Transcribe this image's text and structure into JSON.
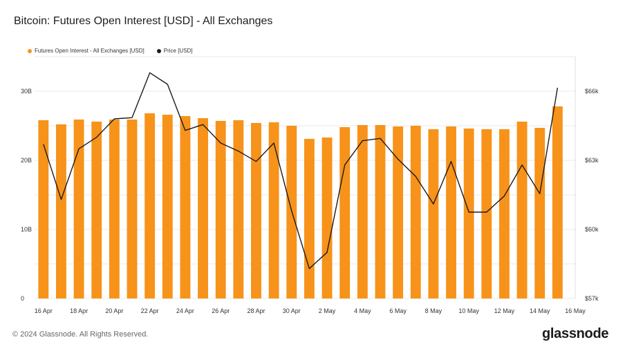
{
  "title": "Bitcoin: Futures Open Interest [USD] - All Exchanges",
  "legend": {
    "oi_label": "Futures Open Interest - All Exchanges [USD]",
    "price_label": "Price [USD]"
  },
  "footer": "© 2024 Glassnode. All Rights Reserved.",
  "brand": "glassnode",
  "colors": {
    "bars": "#F7931A",
    "line": "#1a1a1a",
    "grid": "#e8e8e8"
  },
  "chart_data": {
    "type": "bar",
    "x": [
      "16 Apr",
      "17 Apr",
      "18 Apr",
      "19 Apr",
      "20 Apr",
      "21 Apr",
      "22 Apr",
      "23 Apr",
      "24 Apr",
      "25 Apr",
      "26 Apr",
      "27 Apr",
      "28 Apr",
      "29 Apr",
      "30 Apr",
      "1 May",
      "2 May",
      "3 May",
      "4 May",
      "5 May",
      "6 May",
      "7 May",
      "8 May",
      "9 May",
      "10 May",
      "11 May",
      "12 May",
      "13 May",
      "14 May",
      "15 May"
    ],
    "x_tick_labels": [
      "16 Apr",
      "18 Apr",
      "20 Apr",
      "22 Apr",
      "24 Apr",
      "26 Apr",
      "28 Apr",
      "30 Apr",
      "2 May",
      "4 May",
      "6 May",
      "8 May",
      "10 May",
      "12 May",
      "14 May",
      "16 May"
    ],
    "series": [
      {
        "name": "Futures Open Interest - All Exchanges [USD]",
        "type": "bar",
        "axis": "left",
        "values": [
          25.8,
          25.2,
          25.9,
          25.6,
          25.9,
          25.9,
          26.8,
          26.6,
          26.4,
          26.1,
          25.7,
          25.8,
          25.4,
          25.5,
          25.0,
          23.1,
          23.3,
          24.8,
          25.1,
          25.1,
          24.9,
          25.0,
          24.5,
          24.9,
          24.6,
          24.5,
          24.5,
          25.6,
          24.7,
          27.8
        ]
      },
      {
        "name": "Price [USD]",
        "type": "line",
        "axis": "right",
        "values": [
          63700,
          61300,
          63500,
          64000,
          64800,
          64850,
          66800,
          66300,
          64300,
          64550,
          63750,
          63400,
          62950,
          63750,
          60800,
          58300,
          59000,
          62800,
          63850,
          63950,
          63050,
          62300,
          61100,
          62950,
          60750,
          60750,
          61450,
          62800,
          61550,
          66150
        ]
      }
    ],
    "left_axis": {
      "ticks": [
        "0",
        "10B",
        "20B",
        "30B"
      ],
      "tick_values": [
        0,
        10,
        20,
        30
      ],
      "range": [
        0,
        35
      ]
    },
    "right_axis": {
      "ticks": [
        "$57k",
        "$60k",
        "$63k",
        "$66k"
      ],
      "tick_values": [
        57000,
        60000,
        63000,
        66000
      ],
      "range": [
        57000,
        67500
      ]
    },
    "grid": true,
    "legend_position": "top-left"
  }
}
